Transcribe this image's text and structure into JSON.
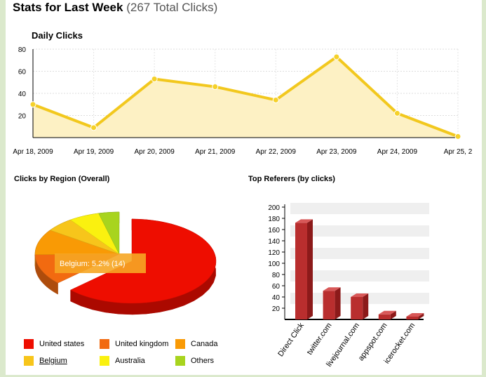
{
  "header": {
    "title": "Stats for Last Week",
    "subtitle": "(267 Total Clicks)"
  },
  "chart_data": [
    {
      "type": "area",
      "title": "Daily Clicks",
      "categories": [
        "Apr 18, 2009",
        "Apr 19, 2009",
        "Apr 20, 2009",
        "Apr 21, 2009",
        "Apr 22, 2009",
        "Apr 23, 2009",
        "Apr 24, 2009",
        "Apr 25, 2"
      ],
      "values": [
        30,
        9,
        53,
        46,
        34,
        73,
        22,
        1
      ],
      "y_ticks": [
        "20",
        "40",
        "60",
        "80"
      ],
      "ylim": [
        0,
        80
      ],
      "grid": true,
      "colors": {
        "line": "#f2c81e",
        "fill": "#fdf1c4",
        "point": "#f5d12a"
      }
    },
    {
      "type": "pie",
      "title": "Clicks by Region (Overall)",
      "categories": [
        "United states",
        "United kingdom",
        "Canada",
        "Belgium",
        "Australia",
        "Others"
      ],
      "values": [
        160,
        30,
        25,
        14,
        15,
        10
      ],
      "colors": [
        "#ee0d00",
        "#f26a10",
        "#f99a05",
        "#f7c51b",
        "#faf10f",
        "#a8d41e"
      ],
      "tooltip": "Belgium: 5.2% (14)"
    },
    {
      "type": "bar",
      "title": "Top Referers (by clicks)",
      "categories": [
        "Direct Click",
        "twitter.com",
        "livejournal.com",
        "appspot.com",
        "icerocket.com"
      ],
      "values": [
        172,
        51,
        40,
        9,
        5
      ],
      "y_ticks": [
        "20",
        "40",
        "60",
        "80",
        "100",
        "120",
        "140",
        "160",
        "180",
        "200"
      ],
      "ylim": [
        0,
        200
      ],
      "colors": {
        "front": "#b92e2e",
        "side": "#8c1a1a",
        "top": "#d85858"
      }
    }
  ]
}
